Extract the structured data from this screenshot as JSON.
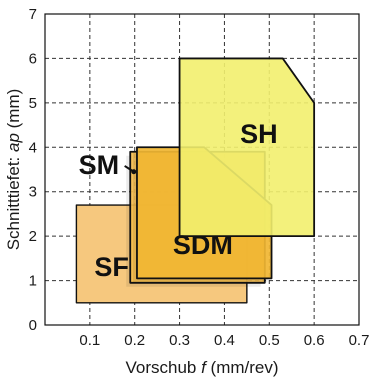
{
  "chart_data": {
    "type": "area",
    "xlabel_parts": [
      "Vorschub ",
      "f",
      " (mm/rev)"
    ],
    "ylabel_parts": [
      "Schnitttiefet: ",
      "ap",
      " (mm)"
    ],
    "xlim": [
      0,
      0.7
    ],
    "ylim": [
      0,
      7
    ],
    "x_ticks": [
      "0.1",
      "0.2",
      "0.3",
      "0.4",
      "0.5",
      "0.6",
      "0.7"
    ],
    "y_ticks": [
      "0",
      "1",
      "2",
      "3",
      "4",
      "5",
      "6",
      "7"
    ],
    "grid": true,
    "regions": [
      {
        "name": "SF",
        "color": "#f6c87e",
        "polygon": [
          [
            0.07,
            0.5
          ],
          [
            0.45,
            0.5
          ],
          [
            0.45,
            2.7
          ],
          [
            0.07,
            2.7
          ]
        ],
        "label_at": [
          0.11,
          1.1
        ]
      },
      {
        "name": "SDM",
        "color": "#f5bd4e",
        "polygon": [
          [
            0.19,
            0.95
          ],
          [
            0.49,
            0.95
          ],
          [
            0.49,
            3.9
          ],
          [
            0.19,
            3.9
          ]
        ],
        "label_at": [
          0.285,
          1.6
        ]
      },
      {
        "name": "SM",
        "color": "#f2b733",
        "polygon": [
          [
            0.205,
            1.05
          ],
          [
            0.505,
            1.05
          ],
          [
            0.505,
            2.7
          ],
          [
            0.355,
            4.0
          ],
          [
            0.205,
            4.0
          ]
        ],
        "label_at": [
          0.075,
          3.4
        ],
        "pointer_to": [
          0.198,
          3.45
        ]
      },
      {
        "name": "SH",
        "color": "#f2ef6e",
        "polygon": [
          [
            0.3,
            2.0
          ],
          [
            0.6,
            2.0
          ],
          [
            0.6,
            5.0
          ],
          [
            0.53,
            6.0
          ],
          [
            0.3,
            6.0
          ]
        ],
        "label_at": [
          0.435,
          4.1
        ]
      }
    ]
  }
}
